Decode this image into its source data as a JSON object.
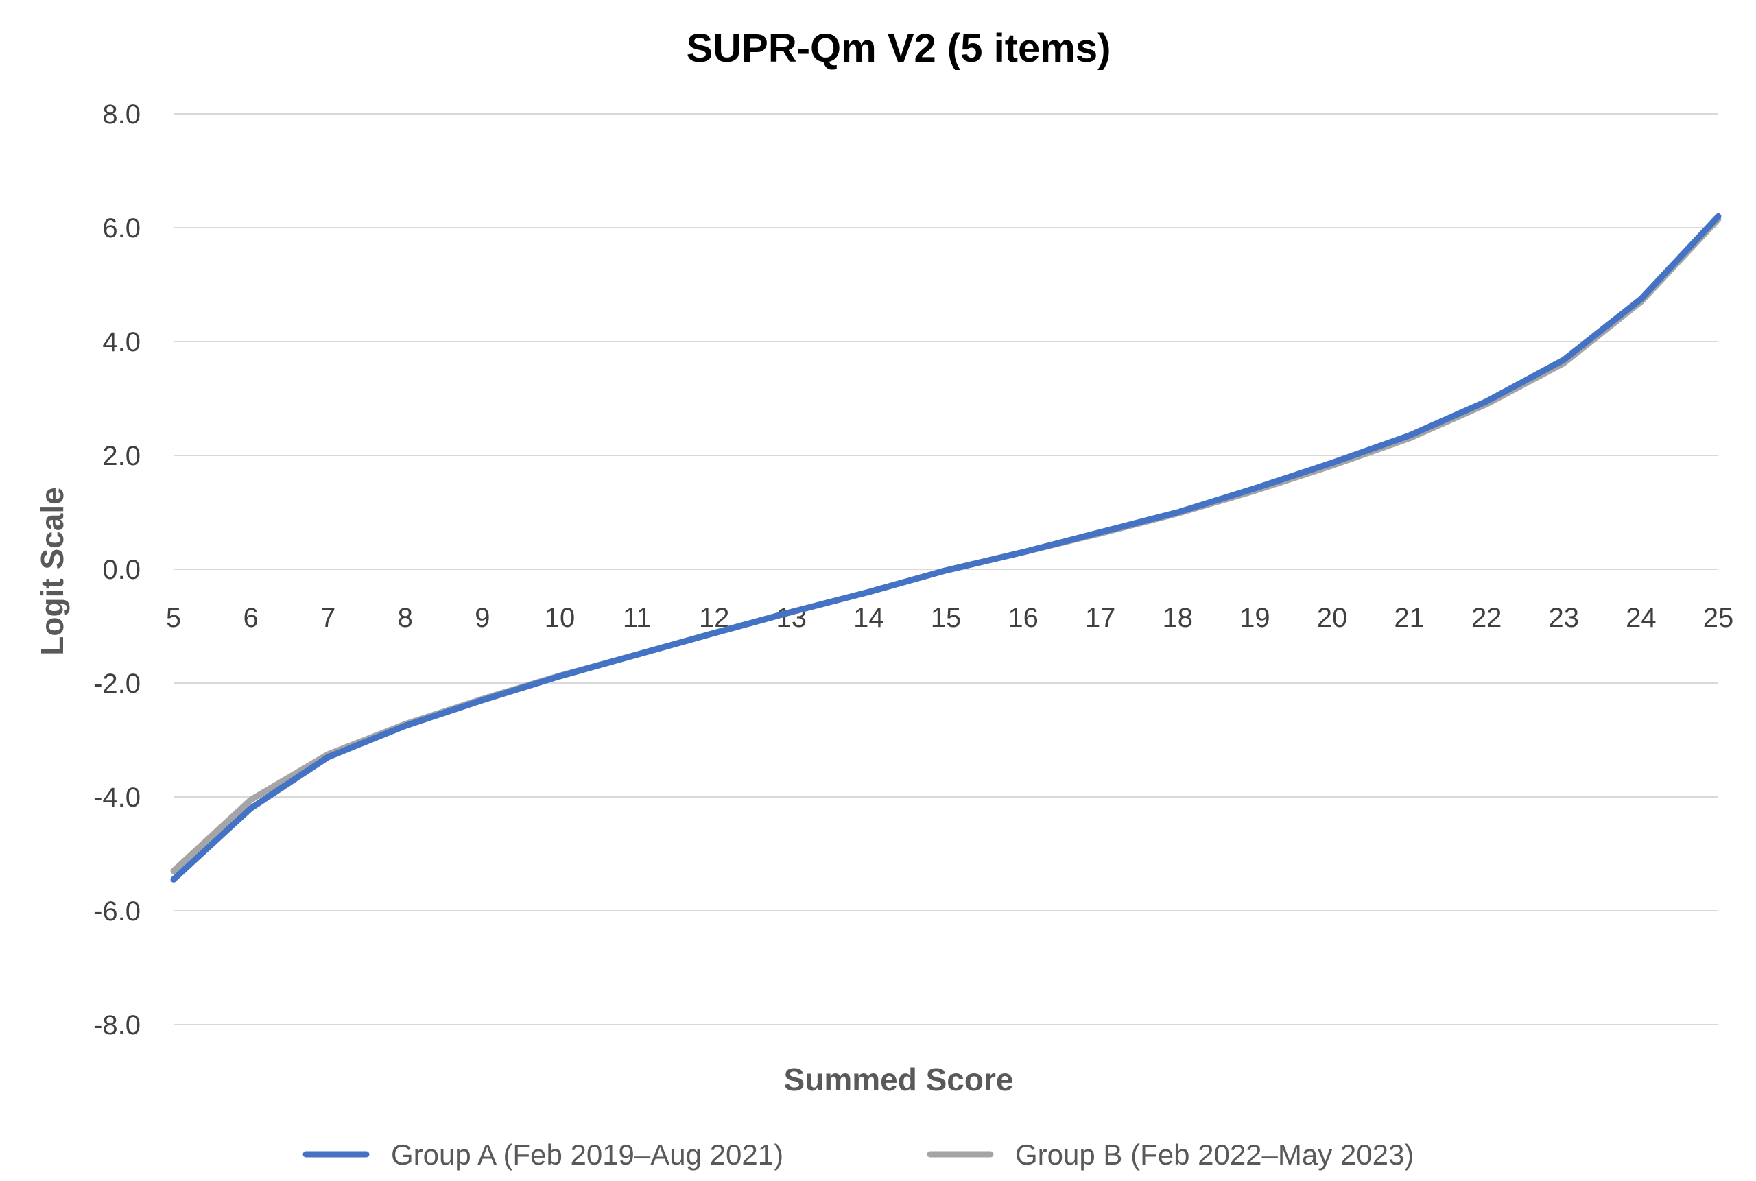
{
  "chart_data": {
    "type": "line",
    "title": "SUPR-Qm V2 (5 items)",
    "xlabel": "Summed Score",
    "ylabel": "Logit Scale",
    "x": [
      5,
      6,
      7,
      8,
      9,
      10,
      11,
      12,
      13,
      14,
      15,
      16,
      17,
      18,
      19,
      20,
      21,
      22,
      23,
      24,
      25
    ],
    "x_tick_labels": [
      "5",
      "6",
      "7",
      "8",
      "9",
      "10",
      "11",
      "12",
      "13",
      "14",
      "15",
      "16",
      "17",
      "18",
      "19",
      "20",
      "21",
      "22",
      "23",
      "24",
      "25"
    ],
    "y_tick_labels": [
      "8.0",
      "6.0",
      "4.0",
      "2.0",
      "0.0",
      "-2.0",
      "-4.0",
      "-6.0",
      "-8.0"
    ],
    "ylim": [
      -8,
      8
    ],
    "xlim": [
      5,
      25
    ],
    "grid": "horizontal",
    "x_axis_crosses_at": 0,
    "legend_position": "bottom",
    "series": [
      {
        "name": "Group A (Feb 2019–Aug 2021)",
        "color": "#4472C4",
        "values": [
          -5.45,
          -4.2,
          -3.3,
          -2.75,
          -2.3,
          -1.88,
          -1.5,
          -1.12,
          -0.75,
          -0.4,
          -0.02,
          0.3,
          0.65,
          1.0,
          1.42,
          1.87,
          2.35,
          2.95,
          3.68,
          4.75,
          6.2
        ]
      },
      {
        "name": "Group B (Feb 2022–May 2023)",
        "color": "#A5A5A5",
        "values": [
          -5.3,
          -4.05,
          -3.25,
          -2.72,
          -2.28,
          -1.87,
          -1.5,
          -1.12,
          -0.75,
          -0.4,
          -0.02,
          0.3,
          0.63,
          0.98,
          1.38,
          1.82,
          2.3,
          2.9,
          3.62,
          4.7,
          6.15
        ]
      }
    ]
  }
}
